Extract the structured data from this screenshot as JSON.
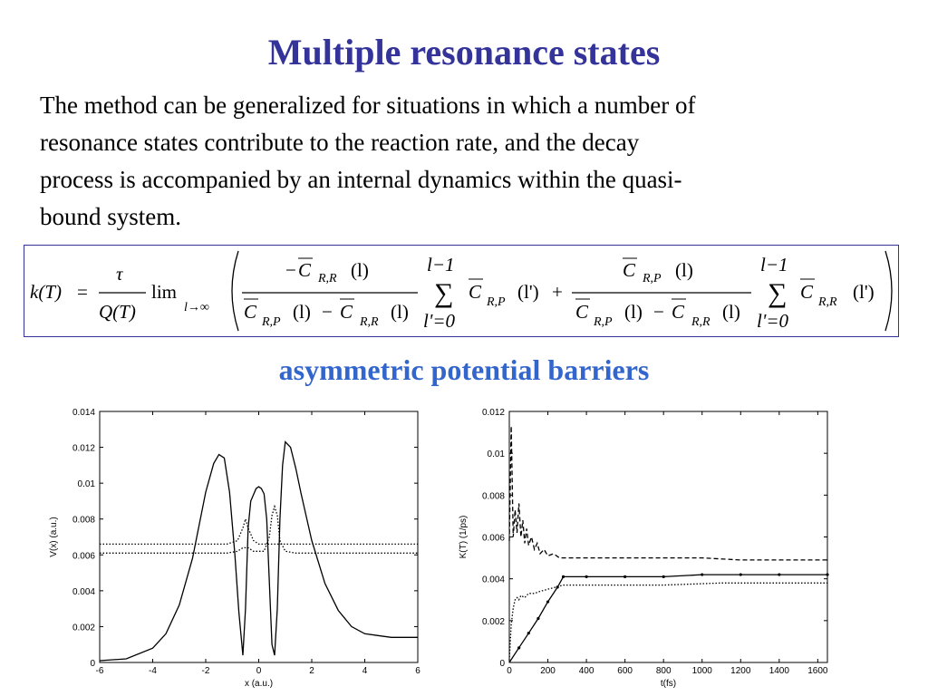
{
  "slide": {
    "title": "Multiple resonance states",
    "paragraph_lines": [
      "The method can be generalized for situations in which a number of",
      "resonance states contribute to the reaction rate, and the decay",
      "process is accompanied by an internal dynamics within the quasi-",
      "bound system."
    ],
    "subtitle": "asymmetric potential barriers"
  },
  "formula": {
    "lhs": "k(T)",
    "equals": "=",
    "tau": "τ",
    "q_of_t": "Q(T)",
    "lim": "lim",
    "lim_sub": "l→∞",
    "sum_upper": "l−1",
    "sum_lower": "l'=0",
    "sigma": "∑",
    "term1_num_sign": "−",
    "C": "C",
    "sub_RR": "R,R",
    "sub_RP": "R,P",
    "arg_l": "(l)",
    "arg_lp": "(l')",
    "minus": "−",
    "plus": "+"
  },
  "colors": {
    "title": "#333399",
    "subtitle": "#3366cc",
    "formula_border": "#333399",
    "plot_line": "#000000"
  },
  "chart_data": [
    {
      "type": "line",
      "title": "",
      "xlabel": "x (a.u.)",
      "ylabel": "V(x) (a.u.)",
      "xlim": [
        -6,
        6
      ],
      "ylim": [
        0,
        0.014
      ],
      "xticks": [
        -6,
        -4,
        -2,
        0,
        2,
        4,
        6
      ],
      "yticks": [
        0,
        0.002,
        0.004,
        0.006,
        0.008,
        0.01,
        0.012,
        0.014
      ],
      "ytick_labels": [
        "0",
        "0.002",
        "0.004",
        "0.006",
        "0.008",
        "0.01",
        "0.012",
        "0.014"
      ],
      "grid": false,
      "series": [
        {
          "style": "solid",
          "x": [
            -6,
            -5,
            -4,
            -3.5,
            -3,
            -2.5,
            -2,
            -1.7,
            -1.5,
            -1.3,
            -1.1,
            -0.9,
            -0.75,
            -0.6,
            -0.5,
            -0.4,
            -0.3,
            -0.1,
            0,
            0.1,
            0.2,
            0.3,
            0.4,
            0.5,
            0.6,
            0.7,
            0.8,
            0.9,
            1.0,
            1.2,
            1.4,
            1.6,
            2,
            2.5,
            3,
            3.5,
            4,
            4.5,
            5,
            6
          ],
          "y": [
            0.0001,
            0.0002,
            0.0008,
            0.0016,
            0.0032,
            0.0058,
            0.0095,
            0.0111,
            0.0116,
            0.0114,
            0.0095,
            0.006,
            0.0028,
            0.0004,
            0.003,
            0.0075,
            0.009,
            0.0097,
            0.0098,
            0.0097,
            0.0094,
            0.008,
            0.0045,
            0.001,
            0.0004,
            0.003,
            0.008,
            0.011,
            0.0123,
            0.012,
            0.0108,
            0.0094,
            0.0068,
            0.0044,
            0.0029,
            0.002,
            0.0016,
            0.0015,
            0.0014,
            0.0014
          ]
        },
        {
          "style": "dotted",
          "x": [
            -6,
            -2,
            -1.2,
            -0.8,
            -0.6,
            -0.5,
            -0.4,
            -0.2,
            0,
            0.2,
            0.4,
            0.5,
            0.6,
            0.7,
            0.8,
            1.2,
            2,
            6
          ],
          "y": [
            0.0066,
            0.0066,
            0.0066,
            0.0068,
            0.0075,
            0.008,
            0.0075,
            0.0068,
            0.0066,
            0.0066,
            0.0066,
            0.0066,
            0.0066,
            0.0066,
            0.0066,
            0.0066,
            0.0066,
            0.0066
          ]
        },
        {
          "style": "dotted",
          "x": [
            -6,
            -2,
            -1.2,
            -0.8,
            -0.6,
            -0.4,
            -0.2,
            0,
            0.2,
            0.4,
            0.5,
            0.6,
            0.7,
            0.8,
            1.0,
            1.4,
            2,
            6
          ],
          "y": [
            0.0061,
            0.0061,
            0.0061,
            0.0062,
            0.0064,
            0.0064,
            0.0062,
            0.0062,
            0.0062,
            0.007,
            0.0082,
            0.0087,
            0.0082,
            0.0068,
            0.0062,
            0.0061,
            0.0061,
            0.0061
          ]
        }
      ]
    },
    {
      "type": "line",
      "title": "",
      "xlabel": "t(fs)",
      "ylabel": "K(T) (1/ps)",
      "xlim": [
        0,
        1650
      ],
      "ylim": [
        0,
        0.012
      ],
      "xticks": [
        0,
        200,
        400,
        600,
        800,
        1000,
        1200,
        1400,
        1600
      ],
      "yticks": [
        0,
        0.002,
        0.004,
        0.006,
        0.008,
        0.01,
        0.012
      ],
      "ytick_labels": [
        "0",
        "0.002",
        "0.004",
        "0.006",
        "0.008",
        "0.01",
        "0.012"
      ],
      "grid": false,
      "series": [
        {
          "style": "dashed",
          "x": [
            0,
            10,
            20,
            30,
            40,
            50,
            60,
            70,
            80,
            90,
            100,
            115,
            130,
            145,
            160,
            180,
            200,
            230,
            260,
            300,
            400,
            600,
            800,
            1000,
            1200,
            1400,
            1650
          ],
          "y": [
            0.0058,
            0.0113,
            0.006,
            0.0073,
            0.0062,
            0.0076,
            0.006,
            0.0068,
            0.0057,
            0.0064,
            0.0056,
            0.006,
            0.0054,
            0.0057,
            0.0052,
            0.0054,
            0.0051,
            0.0052,
            0.005,
            0.005,
            0.005,
            0.005,
            0.005,
            0.005,
            0.0049,
            0.0049,
            0.0049
          ]
        },
        {
          "style": "dotted",
          "x": [
            0,
            10,
            20,
            30,
            40,
            50,
            60,
            80,
            100,
            130,
            160,
            200,
            240,
            280,
            350,
            500,
            800,
            1100,
            1400,
            1650
          ],
          "y": [
            0.0001,
            0.0018,
            0.0026,
            0.003,
            0.0031,
            0.003,
            0.0032,
            0.0031,
            0.0033,
            0.0033,
            0.0034,
            0.0035,
            0.0036,
            0.0037,
            0.0037,
            0.0037,
            0.0037,
            0.0038,
            0.0038,
            0.0038
          ]
        },
        {
          "style": "solid-markers",
          "x": [
            0,
            50,
            100,
            150,
            200,
            250,
            280,
            400,
            600,
            800,
            1000,
            1200,
            1400,
            1650
          ],
          "y": [
            0.0,
            0.0007,
            0.0014,
            0.0021,
            0.0029,
            0.0036,
            0.0041,
            0.0041,
            0.0041,
            0.0041,
            0.0042,
            0.0042,
            0.0042,
            0.0042
          ]
        }
      ]
    }
  ]
}
